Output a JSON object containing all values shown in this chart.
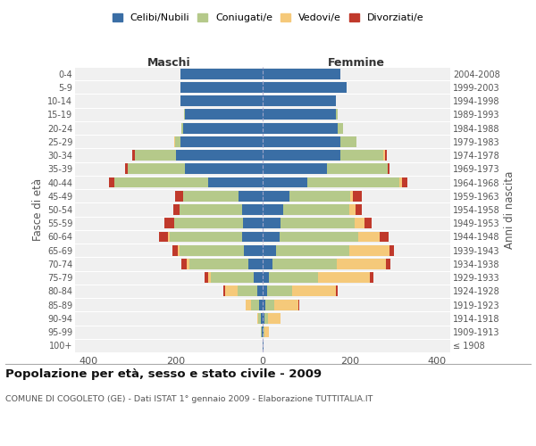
{
  "age_groups": [
    "100+",
    "95-99",
    "90-94",
    "85-89",
    "80-84",
    "75-79",
    "70-74",
    "65-69",
    "60-64",
    "55-59",
    "50-54",
    "45-49",
    "40-44",
    "35-39",
    "30-34",
    "25-29",
    "20-24",
    "15-19",
    "10-14",
    "5-9",
    "0-4"
  ],
  "birth_years": [
    "≤ 1908",
    "1909-1913",
    "1914-1918",
    "1919-1923",
    "1924-1928",
    "1929-1933",
    "1934-1938",
    "1939-1943",
    "1944-1948",
    "1949-1953",
    "1954-1958",
    "1959-1963",
    "1964-1968",
    "1969-1973",
    "1974-1978",
    "1979-1983",
    "1984-1988",
    "1989-1993",
    "1994-1998",
    "1999-2003",
    "2004-2008"
  ],
  "colors": {
    "celibe": "#3a6ea5",
    "coniugato": "#b5c98a",
    "vedovo": "#f5c97a",
    "divorziato": "#c0392b"
  },
  "maschi": {
    "celibe": [
      0,
      2,
      4,
      8,
      12,
      20,
      32,
      42,
      48,
      45,
      48,
      55,
      125,
      178,
      198,
      188,
      182,
      178,
      188,
      188,
      188
    ],
    "coniugato": [
      0,
      2,
      6,
      18,
      45,
      98,
      135,
      148,
      165,
      158,
      142,
      128,
      215,
      132,
      95,
      12,
      5,
      2,
      0,
      0,
      0
    ],
    "vedovo": [
      0,
      0,
      3,
      12,
      28,
      6,
      8,
      5,
      5,
      0,
      0,
      0,
      0,
      0,
      0,
      2,
      0,
      0,
      0,
      0,
      0
    ],
    "divorziato": [
      0,
      0,
      0,
      0,
      5,
      10,
      12,
      12,
      20,
      22,
      15,
      18,
      12,
      5,
      5,
      0,
      0,
      0,
      0,
      0,
      0
    ]
  },
  "femmine": {
    "celibe": [
      2,
      2,
      4,
      6,
      10,
      15,
      22,
      30,
      38,
      40,
      48,
      62,
      102,
      148,
      178,
      178,
      172,
      168,
      168,
      192,
      178
    ],
    "coniugato": [
      0,
      2,
      8,
      20,
      58,
      112,
      148,
      168,
      182,
      170,
      150,
      138,
      212,
      138,
      98,
      38,
      12,
      3,
      0,
      0,
      0
    ],
    "vedovo": [
      0,
      10,
      28,
      55,
      100,
      118,
      112,
      92,
      48,
      24,
      14,
      6,
      5,
      0,
      5,
      0,
      0,
      0,
      0,
      0,
      0
    ],
    "divorziato": [
      0,
      0,
      0,
      2,
      5,
      8,
      10,
      12,
      20,
      15,
      15,
      22,
      12,
      5,
      3,
      0,
      0,
      0,
      0,
      0,
      0
    ]
  },
  "xlim": 430,
  "title": "Popolazione per età, sesso e stato civile - 2009",
  "subtitle": "COMUNE DI COGOLETO (GE) - Dati ISTAT 1° gennaio 2009 - Elaborazione TUTTITALIA.IT",
  "ylabel_left": "Fasce di età",
  "ylabel_right": "Anni di nascita",
  "xlabel_left": "Maschi",
  "xlabel_right": "Femmine",
  "legend_labels": [
    "Celibi/Nubili",
    "Coniugati/e",
    "Vedovi/e",
    "Divorziati/e"
  ],
  "bg_color": "#f0f0f0",
  "fig_color": "#ffffff"
}
